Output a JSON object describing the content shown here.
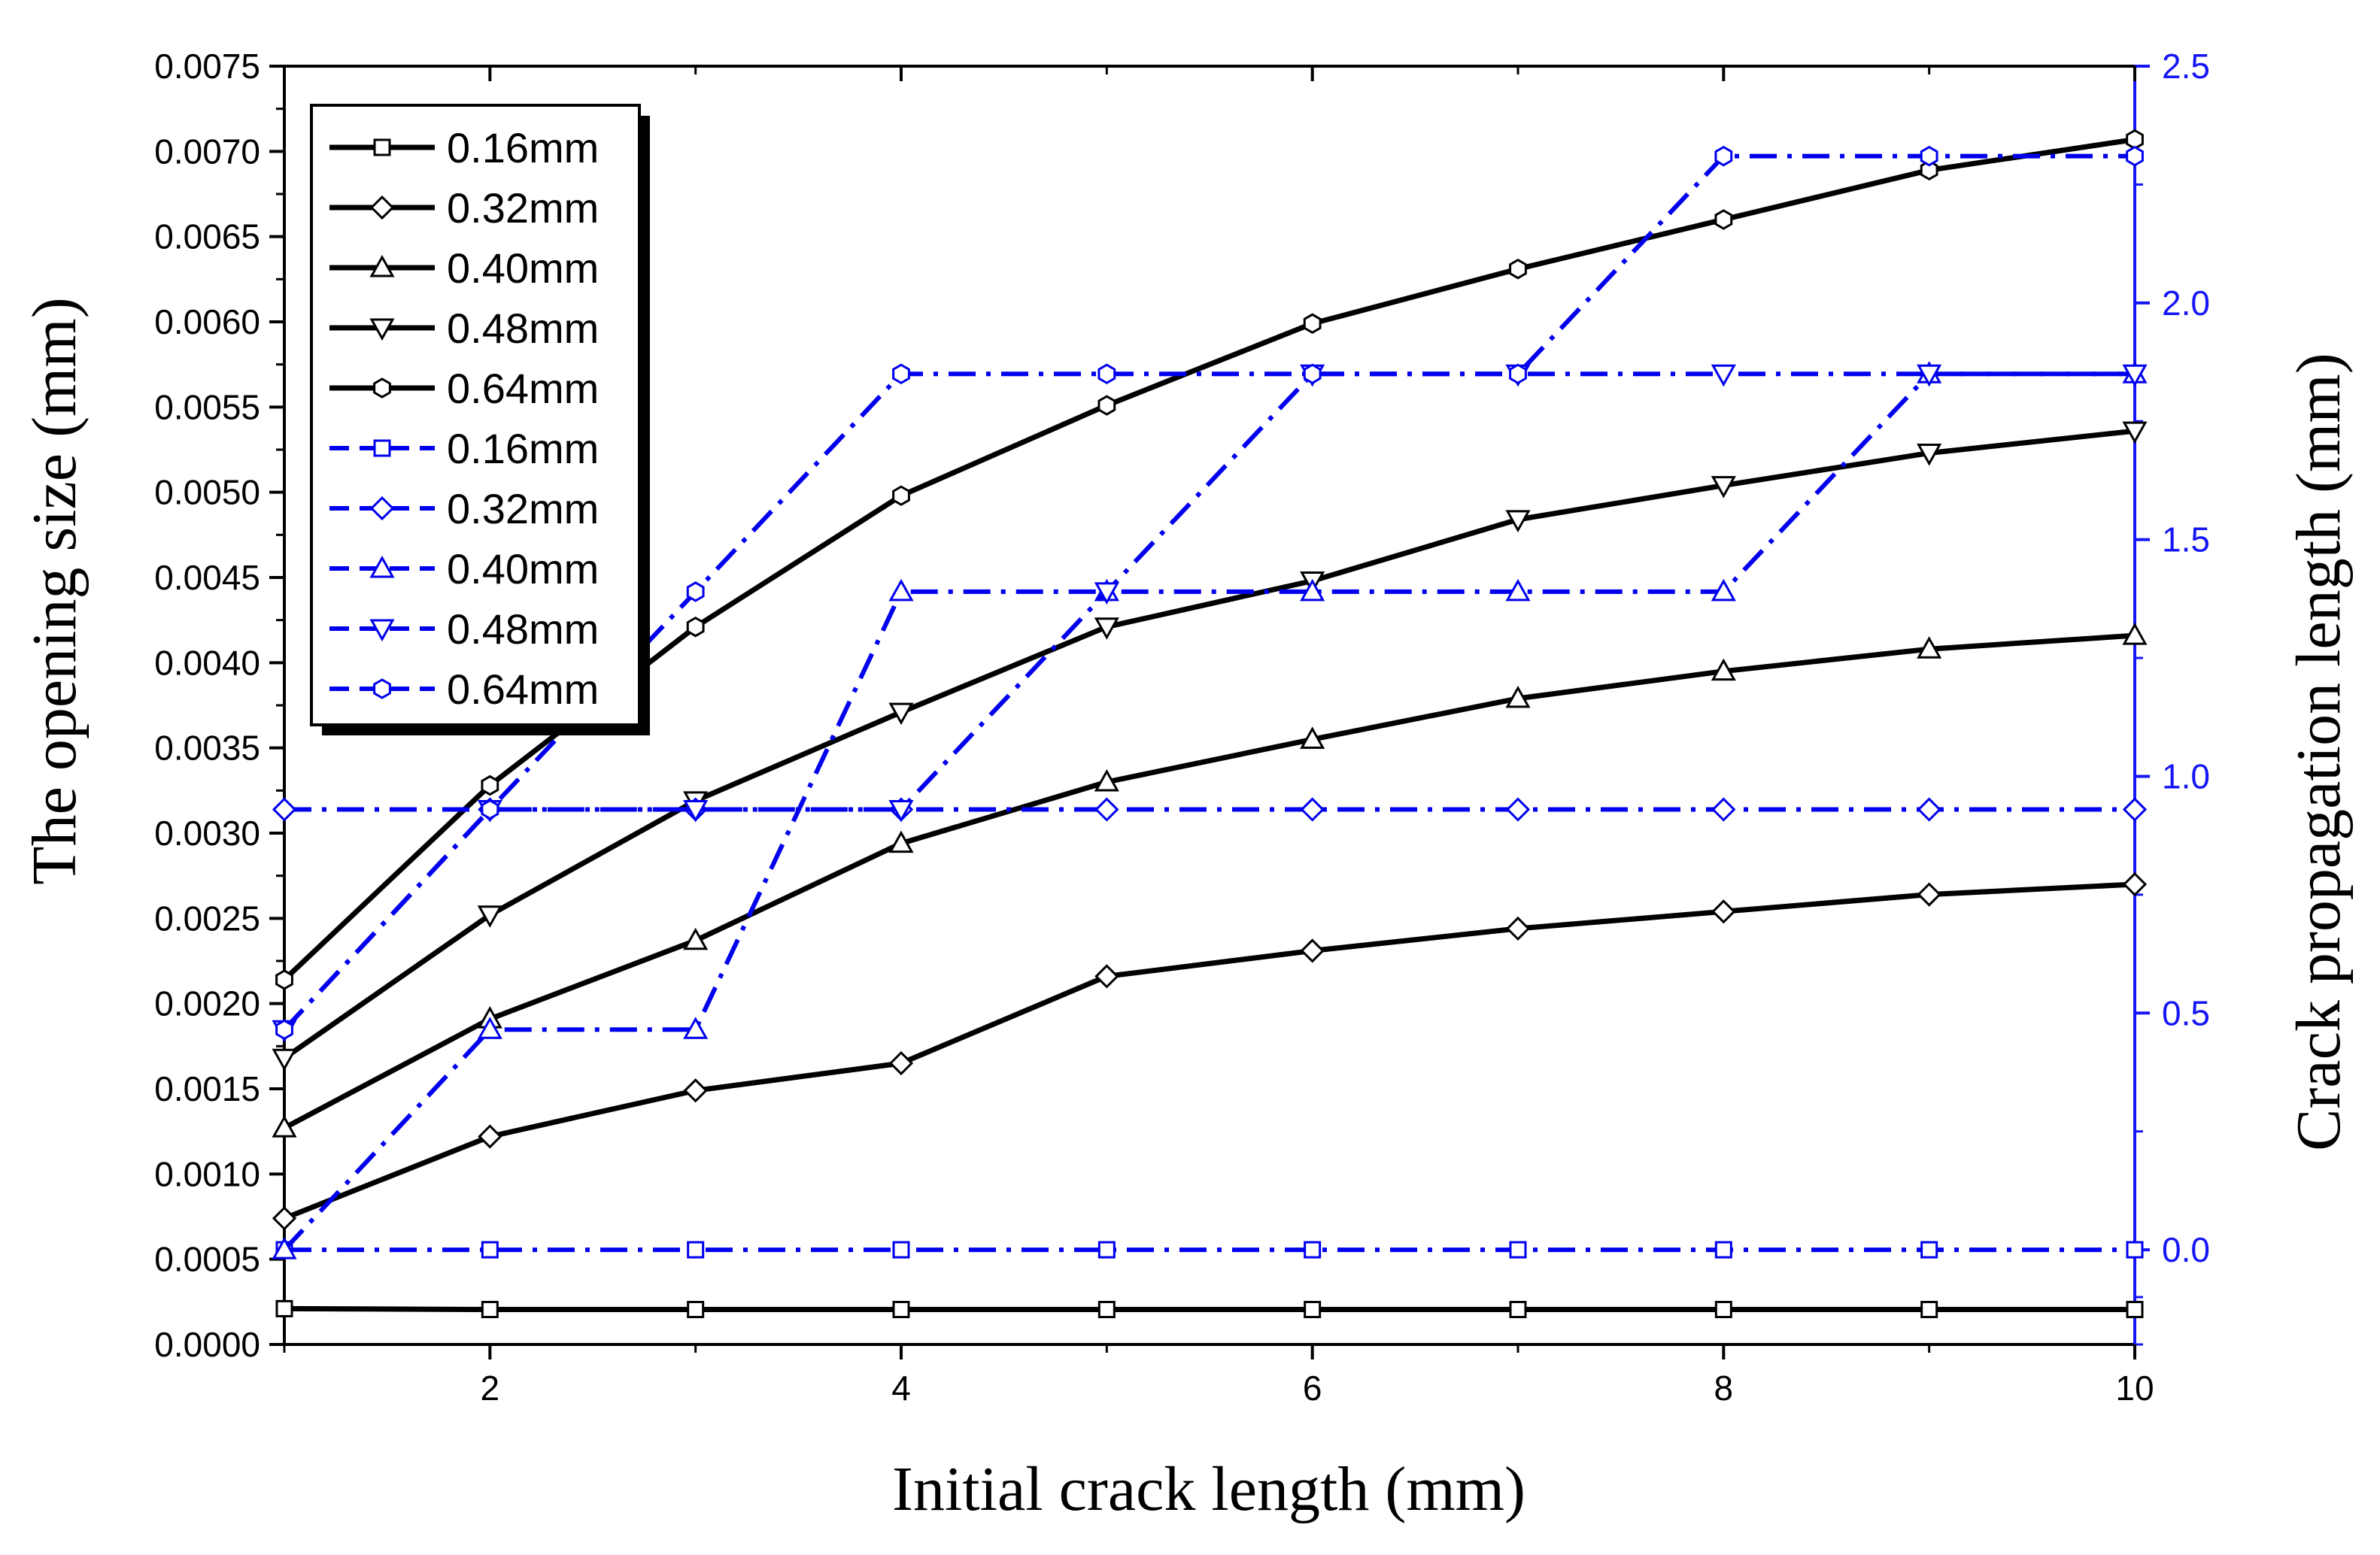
{
  "chart_data": {
    "type": "line",
    "title": "",
    "xlabel": "Initial crack length (mm)",
    "ylabel_left": "The opening size (mm)",
    "ylabel_right": "Crack propagation length (mm)",
    "xlim": [
      1,
      10
    ],
    "ylim_left": [
      0,
      0.0075
    ],
    "ylim_right": [
      -0.2,
      2.5
    ],
    "x_ticks": [
      "2",
      "4",
      "6",
      "8",
      "10"
    ],
    "y_left_ticks": [
      "0.0000",
      "0.0005",
      "0.0010",
      "0.0015",
      "0.0020",
      "0.0025",
      "0.0030",
      "0.0035",
      "0.0040",
      "0.0045",
      "0.0050",
      "0.0055",
      "0.0060",
      "0.0065",
      "0.0070",
      "0.0075"
    ],
    "y_right_ticks": [
      "0.0",
      "0.5",
      "1.0",
      "1.5",
      "2.0",
      "2.5"
    ],
    "x": [
      1,
      2,
      3,
      4,
      5,
      6,
      7,
      8,
      9,
      10
    ],
    "legend_position": "top-left",
    "colors": {
      "left_series": "#000000",
      "right_series": "#0000EE",
      "right_axis": "#1515F5"
    },
    "series": [
      {
        "name": "0.16mm",
        "axis": "left",
        "marker": "square",
        "values": [
          0.00021,
          0.000205,
          0.000205,
          0.000205,
          0.000205,
          0.000205,
          0.000205,
          0.000205,
          0.000205,
          0.000205
        ]
      },
      {
        "name": "0.32mm",
        "axis": "left",
        "marker": "diamond",
        "values": [
          0.00074,
          0.00122,
          0.00149,
          0.00165,
          0.00216,
          0.00231,
          0.00244,
          0.00254,
          0.00264,
          0.0027
        ]
      },
      {
        "name": "0.40mm",
        "axis": "left",
        "marker": "triangle-up",
        "values": [
          0.00127,
          0.00191,
          0.00237,
          0.00294,
          0.0033,
          0.00355,
          0.00379,
          0.00395,
          0.00408,
          0.00416
        ]
      },
      {
        "name": "0.48mm",
        "axis": "left",
        "marker": "triangle-down",
        "values": [
          0.00168,
          0.00252,
          0.00319,
          0.00371,
          0.00421,
          0.00448,
          0.00484,
          0.00504,
          0.00523,
          0.00536
        ]
      },
      {
        "name": "0.64mm",
        "axis": "left",
        "marker": "hexagon",
        "values": [
          0.00214,
          0.00328,
          0.00421,
          0.00498,
          0.00551,
          0.00599,
          0.00631,
          0.0066,
          0.00689,
          0.00707
        ]
      },
      {
        "name": "0.16mm",
        "axis": "right",
        "marker": "square",
        "values": [
          0,
          0,
          0,
          0,
          0,
          0,
          0,
          0,
          0,
          0
        ]
      },
      {
        "name": "0.32mm",
        "axis": "right",
        "marker": "diamond",
        "values": [
          0.93,
          0.93,
          0.93,
          0.93,
          0.93,
          0.93,
          0.93,
          0.93,
          0.93,
          0.93
        ]
      },
      {
        "name": "0.40mm",
        "axis": "right",
        "marker": "triangle-up",
        "values": [
          0.0,
          0.465,
          0.465,
          1.39,
          1.39,
          1.39,
          1.39,
          1.39,
          1.85,
          1.85
        ]
      },
      {
        "name": "0.48mm",
        "axis": "right",
        "marker": "triangle-down",
        "values": [
          0.465,
          0.93,
          0.93,
          0.93,
          1.39,
          1.85,
          1.85,
          1.85,
          1.85,
          1.85
        ]
      },
      {
        "name": "0.64mm",
        "axis": "right",
        "marker": "hexagon",
        "values": [
          0.465,
          0.93,
          1.39,
          1.85,
          1.85,
          1.85,
          1.85,
          2.31,
          2.31,
          2.31
        ]
      }
    ]
  }
}
